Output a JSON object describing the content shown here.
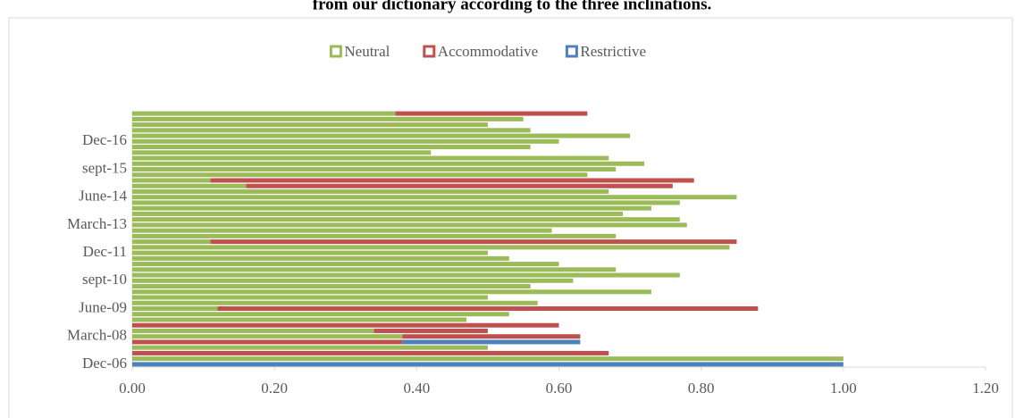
{
  "chart_data": {
    "type": "stacked-bar-horizontal",
    "title": "from our dictionary according to the three inclinations.",
    "categories": [
      "Dec-06",
      null,
      null,
      null,
      null,
      "March-08",
      null,
      null,
      null,
      null,
      "June-09",
      null,
      null,
      null,
      null,
      "sept-10",
      null,
      null,
      null,
      null,
      "Dec-11",
      null,
      null,
      null,
      null,
      "March-13",
      null,
      null,
      null,
      null,
      "June-14",
      null,
      null,
      null,
      null,
      "sept-15",
      null,
      null,
      null,
      null,
      "Dec-16",
      null,
      null,
      null,
      null,
      null
    ],
    "series": [
      {
        "name": "Neutral",
        "color": "#9bbb59",
        "values": [
          0,
          1.0,
          0,
          0.5,
          0,
          0.38,
          0.34,
          0,
          0.47,
          0.53,
          0.12,
          0.57,
          0.5,
          0.73,
          0.56,
          0.62,
          0.77,
          0.68,
          0.6,
          0.53,
          0.5,
          0.84,
          0.11,
          0.68,
          0.59,
          0.78,
          0.77,
          0.69,
          0.73,
          0.77,
          0.85,
          0.67,
          0.16,
          0.11,
          0.64,
          0.68,
          0.72,
          0.67,
          0.42,
          0.56,
          0.6,
          0.7,
          0.56,
          0.5,
          0.55,
          0.37
        ]
      },
      {
        "name": "Accommodative",
        "color": "#c0504d",
        "values": [
          0,
          0,
          0.67,
          0,
          0.38,
          0.25,
          0.16,
          0.6,
          0,
          0,
          0.76,
          0,
          0,
          0,
          0,
          0,
          0,
          0,
          0,
          0,
          0,
          0,
          0.74,
          0,
          0,
          0,
          0,
          0,
          0,
          0,
          0,
          0,
          0.6,
          0.68,
          0,
          0,
          0,
          0,
          0,
          0,
          0,
          0,
          0,
          0,
          0,
          0.27
        ]
      },
      {
        "name": "Restrictive",
        "color": "#4f81bd",
        "values": [
          1.0,
          0,
          0,
          0,
          0.25,
          0,
          0,
          0,
          0,
          0,
          0,
          0,
          0,
          0,
          0,
          0,
          0,
          0,
          0,
          0,
          0,
          0,
          0,
          0,
          0,
          0,
          0,
          0,
          0,
          0,
          0,
          0,
          0,
          0,
          0,
          0,
          0,
          0,
          0,
          0,
          0,
          0,
          0,
          0,
          0,
          0
        ]
      }
    ],
    "xlim": [
      0,
      1.2
    ],
    "xticks": [
      {
        "value": 0,
        "label": "0.00"
      },
      {
        "value": 0.2,
        "label": "0.20"
      },
      {
        "value": 0.4,
        "label": "0.40"
      },
      {
        "value": 0.6,
        "label": "0.60"
      },
      {
        "value": 0.8,
        "label": "0.80"
      },
      {
        "value": 1.0,
        "label": "1.00"
      },
      {
        "value": 1.2,
        "label": "1.20"
      }
    ],
    "legend": "top"
  }
}
